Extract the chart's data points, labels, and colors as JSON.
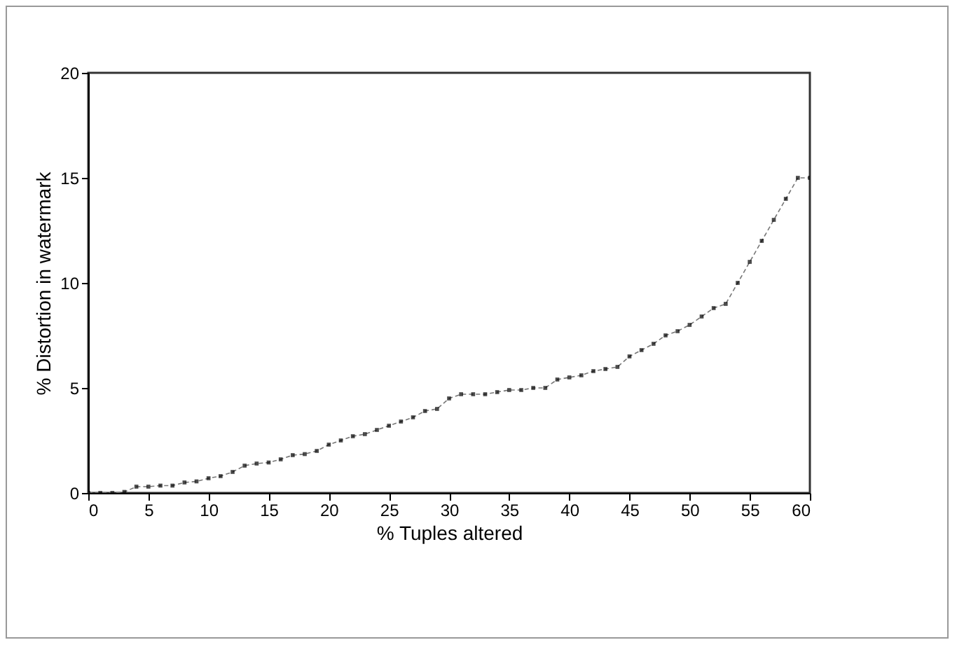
{
  "chart_data": {
    "type": "line",
    "xlabel": "% Tuples altered",
    "ylabel": "% Distortion in watermark",
    "x": [
      0,
      1,
      2,
      3,
      4,
      5,
      6,
      7,
      8,
      9,
      10,
      11,
      12,
      13,
      14,
      15,
      16,
      17,
      18,
      19,
      20,
      21,
      22,
      23,
      24,
      25,
      26,
      27,
      28,
      29,
      30,
      31,
      32,
      33,
      34,
      35,
      36,
      37,
      38,
      39,
      40,
      41,
      42,
      43,
      44,
      45,
      46,
      47,
      48,
      49,
      50,
      51,
      52,
      53,
      54,
      55,
      56,
      57,
      58,
      59,
      60
    ],
    "series": [
      {
        "color": "#000000",
        "values": [
          0,
          0,
          0,
          0.05,
          0.3,
          0.3,
          0.35,
          0.35,
          0.5,
          0.55,
          0.7,
          0.8,
          1.0,
          1.3,
          1.4,
          1.45,
          1.6,
          1.8,
          1.85,
          2.0,
          2.3,
          2.5,
          2.7,
          2.8,
          3.0,
          3.2,
          3.4,
          3.6,
          3.9,
          4.0,
          4.5,
          4.7,
          4.7,
          4.7,
          4.8,
          4.9,
          4.9,
          5.0,
          5.0,
          5.4,
          5.5,
          5.6,
          5.8,
          5.9,
          6.0,
          6.5,
          6.8,
          7.1,
          7.5,
          7.7,
          8.0,
          8.4,
          8.8,
          9.0,
          10.0,
          11.0,
          12.0,
          13.0,
          14.0,
          15.0,
          15.0
        ]
      }
    ],
    "xlim": [
      0,
      60
    ],
    "xticks": [
      0,
      5,
      10,
      15,
      20,
      25,
      30,
      35,
      40,
      45,
      50,
      55,
      60
    ],
    "ylim": [
      0,
      20
    ],
    "yticks": [
      0,
      5,
      10,
      15,
      20
    ],
    "grid": false,
    "marker": "square",
    "line_style": "dashed"
  }
}
